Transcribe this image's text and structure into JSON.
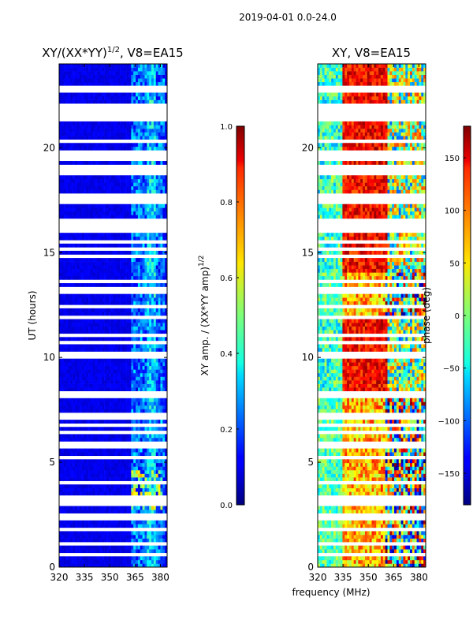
{
  "suptitle": "2019-04-01 0.0-24.0",
  "chart_data": [
    {
      "type": "heatmap",
      "title_main": "XY/(XX*YY)",
      "title_exp": "1/2",
      "title_suffix": ", V8=EA15",
      "xlabel": "",
      "ylabel": "UT (hours)",
      "xlim": [
        320,
        384
      ],
      "ylim": [
        0,
        24
      ],
      "xticks": [
        "320",
        "335",
        "350",
        "365",
        "380"
      ],
      "xtick_values": [
        320,
        335,
        350,
        365,
        380
      ],
      "yticks": [
        "0",
        "5",
        "10",
        "15",
        "20"
      ],
      "ytick_values": [
        0,
        5,
        10,
        15,
        20
      ],
      "colormap": "jet",
      "colorbar": {
        "label_main": "XY amp. / (XX*YY amp)",
        "label_exp": "1/2",
        "range": [
          0.0,
          1.0
        ],
        "ticks": [
          "0.0",
          "0.2",
          "0.4",
          "0.6",
          "0.8",
          "1.0"
        ],
        "tick_values": [
          0.0,
          0.2,
          0.4,
          0.6,
          0.8,
          1.0
        ]
      }
    },
    {
      "type": "heatmap",
      "title": "XY, V8=EA15",
      "xlabel": "frequency (MHz)",
      "ylabel": "",
      "xlim": [
        320,
        384
      ],
      "ylim": [
        0,
        24
      ],
      "xticks": [
        "320",
        "335",
        "350",
        "365",
        "380"
      ],
      "xtick_values": [
        320,
        335,
        350,
        365,
        380
      ],
      "yticks": [
        "0",
        "5",
        "10",
        "15",
        "20"
      ],
      "ytick_values": [
        0,
        5,
        10,
        15,
        20
      ],
      "colormap": "jet",
      "colorbar": {
        "label": "phase (deg)",
        "range": [
          -180,
          180
        ],
        "ticks": [
          "−150",
          "−100",
          "−50",
          "0",
          "50",
          "100",
          "150"
        ],
        "tick_values": [
          -150,
          -100,
          -50,
          0,
          50,
          100,
          150
        ]
      }
    }
  ]
}
